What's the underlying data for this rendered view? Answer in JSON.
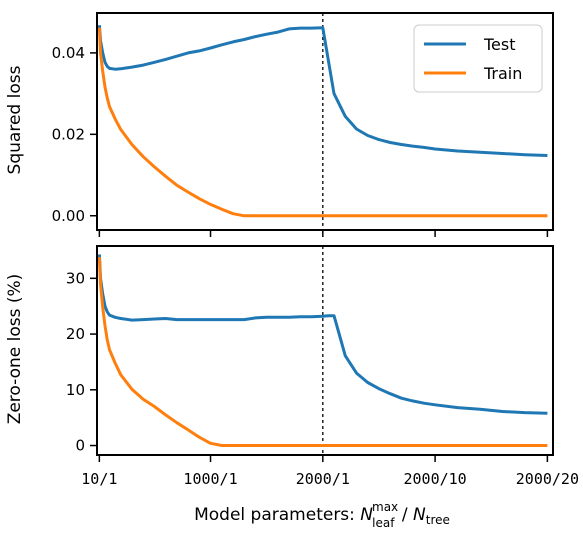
{
  "chart_data": [
    {
      "type": "line",
      "ylabel": "Squared loss",
      "ylim": [
        -0.0035,
        0.0498
      ],
      "yticks": [
        0.0,
        0.02,
        0.04
      ],
      "ytick_labels": [
        "0.00",
        "0.02",
        "0.04"
      ],
      "x_divider": "2000/1",
      "legend": {
        "placement": "top-right",
        "entries": [
          "Test",
          "Train"
        ]
      },
      "series": [
        {
          "name": "Test",
          "color": "#1f77b4",
          "x": [
            10,
            20,
            40,
            60,
            80,
            100,
            150,
            200,
            300,
            400,
            500,
            600,
            700,
            800,
            900,
            1000,
            1100,
            1200,
            1300,
            1400,
            1500,
            1600,
            1700,
            1800,
            1900,
            2000,
            2100,
            2200,
            2300,
            2400,
            2500,
            2600,
            2700,
            2800,
            2900,
            3000,
            3200,
            3400,
            3600,
            3800,
            4000
          ],
          "y": [
            0.0468,
            0.043,
            0.04,
            0.0377,
            0.0367,
            0.0362,
            0.036,
            0.0361,
            0.0365,
            0.037,
            0.0377,
            0.0384,
            0.0392,
            0.04,
            0.0405,
            0.0412,
            0.042,
            0.0427,
            0.0433,
            0.044,
            0.0446,
            0.0451,
            0.0459,
            0.0461,
            0.0461,
            0.0462,
            0.03,
            0.0244,
            0.0213,
            0.0197,
            0.0187,
            0.018,
            0.0175,
            0.0171,
            0.0168,
            0.0164,
            0.0159,
            0.0156,
            0.0153,
            0.015,
            0.0148
          ]
        },
        {
          "name": "Train",
          "color": "#ff7f0e",
          "x": [
            10,
            20,
            40,
            60,
            80,
            100,
            150,
            200,
            300,
            400,
            500,
            600,
            700,
            800,
            900,
            1000,
            1100,
            1200,
            1300,
            1400,
            1500,
            1600,
            1700,
            1800,
            1900,
            2000,
            2200,
            2500,
            3000,
            3500,
            4000
          ],
          "y": [
            0.0462,
            0.04,
            0.0355,
            0.0316,
            0.029,
            0.0268,
            0.0238,
            0.0212,
            0.0175,
            0.0145,
            0.012,
            0.0097,
            0.0075,
            0.0058,
            0.0042,
            0.0028,
            0.0016,
            0.0005,
            0.0,
            0.0,
            0.0,
            0.0,
            0.0,
            0.0,
            0.0,
            0.0,
            0.0,
            0.0,
            0.0,
            0.0,
            0.0
          ]
        }
      ]
    },
    {
      "type": "line",
      "ylabel": "Zero-one loss (%)",
      "ylim": [
        -1.7,
        35.8
      ],
      "yticks": [
        0,
        10,
        20,
        30
      ],
      "ytick_labels": [
        "0",
        "10",
        "20",
        "30"
      ],
      "x_divider": "2000/1",
      "xticks": [
        10,
        1000,
        2000,
        3000,
        4000
      ],
      "xtick_labels": [
        "10/1",
        "1000/1",
        "2000/1",
        "2000/10",
        "2000/20"
      ],
      "xlabel_prefix": "Model parameters: ",
      "xlabel_n": "N",
      "xlabel_sup": "max",
      "xlabel_sub": "leaf",
      "xlabel_sep": " / ",
      "xlabel_n2": "N",
      "xlabel_sub2": "tree",
      "xlim": [
        -11,
        4050
      ],
      "series": [
        {
          "name": "Test",
          "color": "#1f77b4",
          "x": [
            10,
            20,
            40,
            60,
            80,
            100,
            150,
            200,
            300,
            400,
            500,
            600,
            700,
            800,
            900,
            1000,
            1100,
            1200,
            1300,
            1400,
            1500,
            1600,
            1700,
            1800,
            1900,
            2000,
            2050,
            2100,
            2200,
            2300,
            2400,
            2500,
            2600,
            2700,
            2800,
            2900,
            3000,
            3200,
            3400,
            3600,
            3800,
            4000
          ],
          "y": [
            34.3,
            30.0,
            27.2,
            25.0,
            24.0,
            23.4,
            23.0,
            22.8,
            22.5,
            22.6,
            22.7,
            22.8,
            22.6,
            22.6,
            22.6,
            22.6,
            22.6,
            22.6,
            22.6,
            22.9,
            23.0,
            23.0,
            23.0,
            23.1,
            23.1,
            23.2,
            23.3,
            23.3,
            16.1,
            13.0,
            11.3,
            10.2,
            9.3,
            8.5,
            8.0,
            7.6,
            7.3,
            6.8,
            6.5,
            6.1,
            5.9,
            5.8
          ]
        },
        {
          "name": "Train",
          "color": "#ff7f0e",
          "x": [
            10,
            20,
            40,
            60,
            80,
            100,
            150,
            200,
            300,
            400,
            500,
            600,
            700,
            800,
            900,
            1000,
            1100,
            1200,
            1300,
            1400,
            1500,
            1600,
            1700,
            1800,
            1900,
            2000,
            2200,
            2500,
            3000,
            3500,
            4000
          ],
          "y": [
            33.8,
            29.0,
            24.8,
            21.5,
            19.0,
            17.2,
            14.8,
            12.7,
            10.1,
            8.3,
            7.0,
            5.5,
            4.1,
            2.8,
            1.5,
            0.4,
            0.0,
            0.0,
            0.0,
            0.0,
            0.0,
            0.0,
            0.0,
            0.0,
            0.0,
            0.0,
            0.0,
            0.0,
            0.0,
            0.0,
            0.0
          ]
        }
      ]
    }
  ]
}
